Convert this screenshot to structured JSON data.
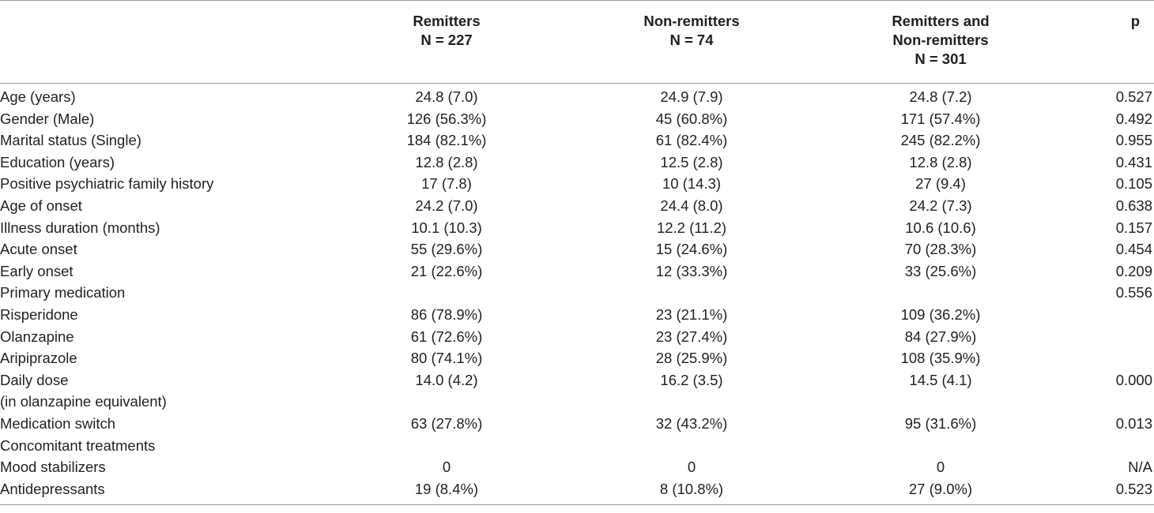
{
  "table": {
    "headers": {
      "label": "",
      "remitters": [
        "Remitters",
        "N = 227"
      ],
      "nonremitters": [
        "Non-remitters",
        "N = 74"
      ],
      "combined": [
        "Remitters and",
        "Non-remitters",
        "N = 301"
      ],
      "p": "p"
    },
    "rows": [
      {
        "label": "Age (years)",
        "remitters": "24.8 (7.0)",
        "nonremitters": "24.9 (7.9)",
        "combined": "24.8 (7.2)",
        "p": "0.527"
      },
      {
        "label": "Gender (Male)",
        "remitters": "126 (56.3%)",
        "nonremitters": "45 (60.8%)",
        "combined": "171 (57.4%)",
        "p": "0.492"
      },
      {
        "label": "Marital status (Single)",
        "remitters": "184 (82.1%)",
        "nonremitters": "61 (82.4%)",
        "combined": "245 (82.2%)",
        "p": "0.955"
      },
      {
        "label": "Education (years)",
        "remitters": "12.8 (2.8)",
        "nonremitters": "12.5 (2.8)",
        "combined": "12.8 (2.8)",
        "p": "0.431"
      },
      {
        "label": "Positive psychiatric family history",
        "remitters": "17 (7.8)",
        "nonremitters": "10 (14.3)",
        "combined": "27 (9.4)",
        "p": "0.105"
      },
      {
        "label": "Age of onset",
        "remitters": "24.2 (7.0)",
        "nonremitters": "24.4 (8.0)",
        "combined": "24.2 (7.3)",
        "p": "0.638"
      },
      {
        "label": "Illness duration (months)",
        "remitters": "10.1 (10.3)",
        "nonremitters": "12.2 (11.2)",
        "combined": "10.6 (10.6)",
        "p": "0.157"
      },
      {
        "label": "Acute onset",
        "remitters": "55 (29.6%)",
        "nonremitters": "15 (24.6%)",
        "combined": "70 (28.3%)",
        "p": "0.454"
      },
      {
        "label": "Early onset",
        "remitters": "21 (22.6%)",
        "nonremitters": "12 (33.3%)",
        "combined": "33 (25.6%)",
        "p": "0.209"
      },
      {
        "label": "Primary medication",
        "remitters": "",
        "nonremitters": "",
        "combined": "",
        "p": "0.556"
      },
      {
        "label": "Risperidone",
        "remitters": "86 (78.9%)",
        "nonremitters": "23 (21.1%)",
        "combined": "109 (36.2%)",
        "p": ""
      },
      {
        "label": "Olanzapine",
        "remitters": "61 (72.6%)",
        "nonremitters": "23 (27.4%)",
        "combined": "84 (27.9%)",
        "p": ""
      },
      {
        "label": "Aripiprazole",
        "remitters": "80 (74.1%)",
        "nonremitters": "28 (25.9%)",
        "combined": "108 (35.9%)",
        "p": ""
      },
      {
        "label": "Daily dose",
        "remitters": "14.0 (4.2)",
        "nonremitters": "16.2 (3.5)",
        "combined": "14.5 (4.1)",
        "p": "0.000"
      },
      {
        "label": "(in olanzapine equivalent)",
        "remitters": "",
        "nonremitters": "",
        "combined": "",
        "p": ""
      },
      {
        "label": "Medication switch",
        "remitters": "63 (27.8%)",
        "nonremitters": "32 (43.2%)",
        "combined": "95 (31.6%)",
        "p": "0.013"
      },
      {
        "label": "Concomitant treatments",
        "remitters": "",
        "nonremitters": "",
        "combined": "",
        "p": ""
      },
      {
        "label": "Mood stabilizers",
        "remitters": "0",
        "nonremitters": "0",
        "combined": "0",
        "p": "N/A"
      },
      {
        "label": "Antidepressants",
        "remitters": "19 (8.4%)",
        "nonremitters": "8 (10.8%)",
        "combined": "27 (9.0%)",
        "p": "0.523"
      }
    ]
  }
}
